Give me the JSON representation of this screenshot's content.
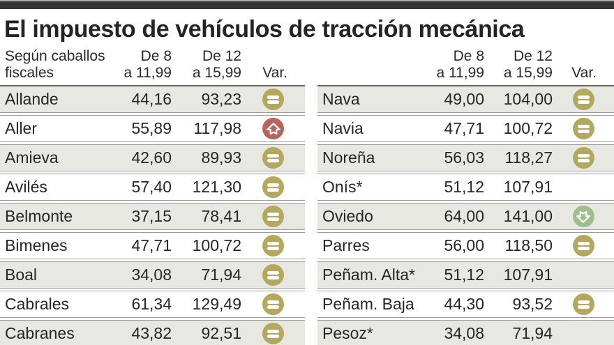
{
  "title": "El impuesto de vehículos de tracción mecánica",
  "header": {
    "row_label_line1": "Según caballos",
    "row_label_line2": "fiscales",
    "col1": [
      "De 8",
      "a 11,99"
    ],
    "col2": [
      "De 12",
      "a 15,99"
    ],
    "var": "Var."
  },
  "colors": {
    "equal_icon": "#b4a85e",
    "up_icon": "#b5655c",
    "down_icon": "#9fbe8e",
    "shaded_row": "#e8e8e3",
    "top_bar": "#343431"
  },
  "chart_data": {
    "type": "table",
    "title": "El impuesto de vehículos de tracción mecánica",
    "columns": [
      "Según caballos fiscales",
      "De 8 a 11,99",
      "De 12 a 15,99",
      "Var."
    ],
    "left_rows": [
      {
        "label": "Allande",
        "v1": "44,16",
        "v2": "93,23",
        "var": "equal"
      },
      {
        "label": "Aller",
        "v1": "55,89",
        "v2": "117,98",
        "var": "up"
      },
      {
        "label": "Amieva",
        "v1": "42,60",
        "v2": "89,93",
        "var": "equal"
      },
      {
        "label": "Avilés",
        "v1": "57,40",
        "v2": "121,30",
        "var": "equal"
      },
      {
        "label": "Belmonte",
        "v1": "37,15",
        "v2": "78,41",
        "var": "equal"
      },
      {
        "label": "Bimenes",
        "v1": "47,71",
        "v2": "100,72",
        "var": "equal"
      },
      {
        "label": "Boal",
        "v1": "34,08",
        "v2": "71,94",
        "var": "equal"
      },
      {
        "label": "Cabrales",
        "v1": "61,34",
        "v2": "129,49",
        "var": "equal"
      },
      {
        "label": "Cabranes",
        "v1": "43,82",
        "v2": "92,51",
        "var": "equal"
      }
    ],
    "right_rows": [
      {
        "label": "Nava",
        "v1": "49,00",
        "v2": "104,00",
        "var": "equal"
      },
      {
        "label": "Navia",
        "v1": "47,71",
        "v2": "100,72",
        "var": "equal"
      },
      {
        "label": "Noreña",
        "v1": "56,03",
        "v2": "118,27",
        "var": "equal"
      },
      {
        "label": "Onís*",
        "v1": "51,12",
        "v2": "107,91",
        "var": "none"
      },
      {
        "label": "Oviedo",
        "v1": "64,00",
        "v2": "141,00",
        "var": "down"
      },
      {
        "label": "Parres",
        "v1": "56,00",
        "v2": "118,50",
        "var": "equal"
      },
      {
        "label": "Peñam. Alta*",
        "v1": "51,12",
        "v2": "107,91",
        "var": "none"
      },
      {
        "label": "Peñam. Baja",
        "v1": "44,30",
        "v2": "93,52",
        "var": "equal"
      },
      {
        "label": "Pesoz*",
        "v1": "34,08",
        "v2": "71,94",
        "var": "none"
      }
    ]
  }
}
